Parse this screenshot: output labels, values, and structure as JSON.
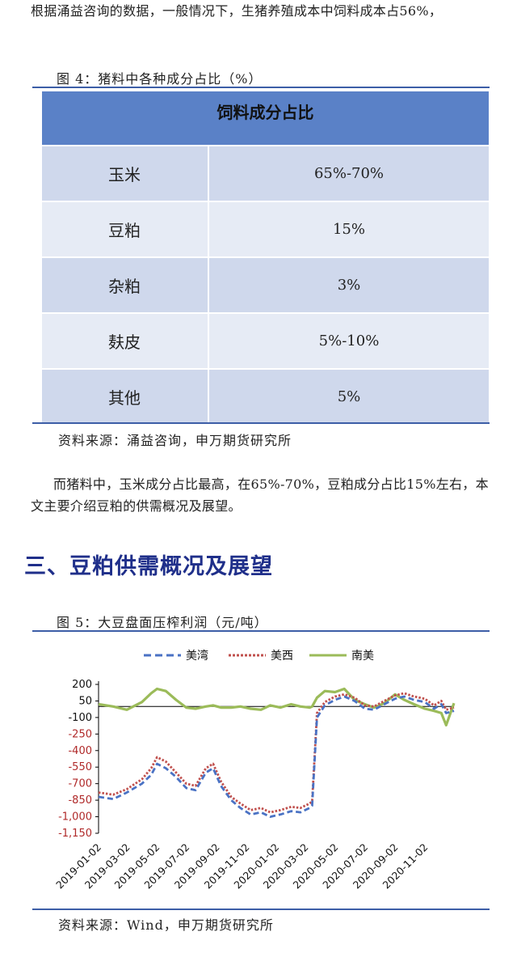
{
  "intro_paragraph": "根据涌益咨询的数据，一般情况下，生猪养殖成本中饲料成本占56%，",
  "figure4": {
    "caption": "图 4：猪料中各种成分占比（%）",
    "header": "饲料成分占比",
    "rows": [
      {
        "name": "玉米",
        "value": "65%-70%"
      },
      {
        "name": "豆粕",
        "value": "15%"
      },
      {
        "name": "杂粕",
        "value": "3%"
      },
      {
        "name": "麸皮",
        "value": "5%-10%"
      },
      {
        "name": "其他",
        "value": "5%"
      }
    ],
    "source": "资料来源：涌益咨询，申万期货研究所"
  },
  "body_paragraph": "而猪料中，玉米成分占比最高，在65%-70%，豆粕成分占比15%左右，本文主要介绍豆粕的供需概况及展望。",
  "section_heading": "三、豆粕供需概况及展望",
  "figure5": {
    "caption": "图 5：大豆盘面压榨利润（元/吨）",
    "source": "资料来源：Wind，申万期货研究所"
  },
  "chart_data": {
    "type": "line",
    "title": "",
    "xlabel": "",
    "ylabel": "",
    "legend_position": "top",
    "ylim": [
      -1150,
      200
    ],
    "yticks": [
      "200",
      "50",
      "-100",
      "-250",
      "-400",
      "-550",
      "-700",
      "-850",
      "-1,000",
      "-1,150"
    ],
    "ytick_values": [
      200,
      50,
      -100,
      -250,
      -400,
      -550,
      -700,
      -850,
      -1000,
      -1150
    ],
    "xticks": [
      "2019-01-02",
      "2019-03-02",
      "2019-05-02",
      "2019-07-02",
      "2019-09-02",
      "2019-11-02",
      "2020-01-02",
      "2020-03-02",
      "2020-05-02",
      "2020-07-02",
      "2020-09-02",
      "2020-11-02"
    ],
    "x_start": "2019-01-02",
    "x_end": "2020-12-31",
    "x": [
      "2019-01-02",
      "2019-02-01",
      "2019-03-01",
      "2019-04-01",
      "2019-04-20",
      "2019-05-02",
      "2019-05-20",
      "2019-06-10",
      "2019-07-01",
      "2019-07-20",
      "2019-08-10",
      "2019-08-25",
      "2019-09-10",
      "2019-10-01",
      "2019-10-20",
      "2019-11-10",
      "2019-12-01",
      "2019-12-20",
      "2020-01-10",
      "2020-02-01",
      "2020-02-20",
      "2020-03-10",
      "2020-03-15",
      "2020-03-25",
      "2020-04-10",
      "2020-05-01",
      "2020-05-20",
      "2020-06-10",
      "2020-07-01",
      "2020-07-20",
      "2020-08-10",
      "2020-09-01",
      "2020-09-20",
      "2020-10-10",
      "2020-11-01",
      "2020-11-20",
      "2020-12-05",
      "2020-12-15",
      "2020-12-31"
    ],
    "series": [
      {
        "name": "美湾",
        "color": "#4a72c4",
        "dash": "dash",
        "values": [
          -820,
          -840,
          -780,
          -700,
          -620,
          -520,
          -560,
          -640,
          -740,
          -760,
          -600,
          -560,
          -720,
          -850,
          -920,
          -980,
          -960,
          -1000,
          -980,
          -950,
          -960,
          -920,
          -900,
          -100,
          10,
          60,
          90,
          50,
          -20,
          -30,
          20,
          70,
          90,
          60,
          40,
          -20,
          20,
          -60,
          -40
        ]
      },
      {
        "name": "美西",
        "color": "#c0504d",
        "dash": "dot",
        "values": [
          -780,
          -800,
          -750,
          -660,
          -560,
          -460,
          -500,
          -600,
          -700,
          -720,
          -560,
          -520,
          -680,
          -820,
          -880,
          -940,
          -920,
          -960,
          -940,
          -910,
          -920,
          -880,
          -860,
          -60,
          40,
          90,
          110,
          80,
          10,
          0,
          50,
          100,
          120,
          90,
          70,
          10,
          50,
          -30,
          -10
        ]
      },
      {
        "name": "南美",
        "color": "#9bbb59",
        "dash": "solid",
        "values": [
          20,
          0,
          -30,
          40,
          120,
          160,
          140,
          60,
          -10,
          -20,
          0,
          10,
          -10,
          -10,
          0,
          -20,
          -30,
          10,
          -10,
          20,
          0,
          -10,
          0,
          80,
          140,
          130,
          160,
          60,
          20,
          -10,
          30,
          110,
          60,
          20,
          -20,
          -40,
          -60,
          -170,
          30
        ]
      }
    ]
  }
}
